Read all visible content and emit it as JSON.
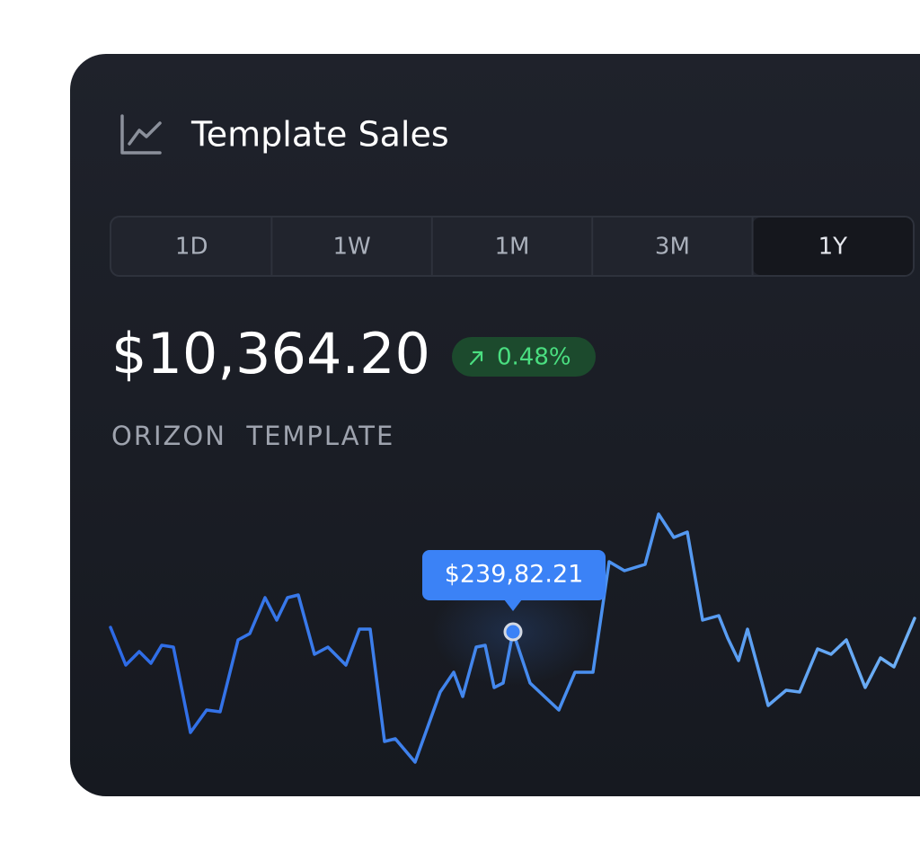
{
  "header": {
    "title": "Template Sales"
  },
  "tabs": {
    "items": [
      "1D",
      "1W",
      "1M",
      "3M",
      "1Y"
    ],
    "selected": "1Y"
  },
  "summary": {
    "price": "$10,364.20",
    "change": "0.48%",
    "product": "ORIZON  TEMPLATE"
  },
  "chart": {
    "tooltip": "$239,82.21"
  }
}
